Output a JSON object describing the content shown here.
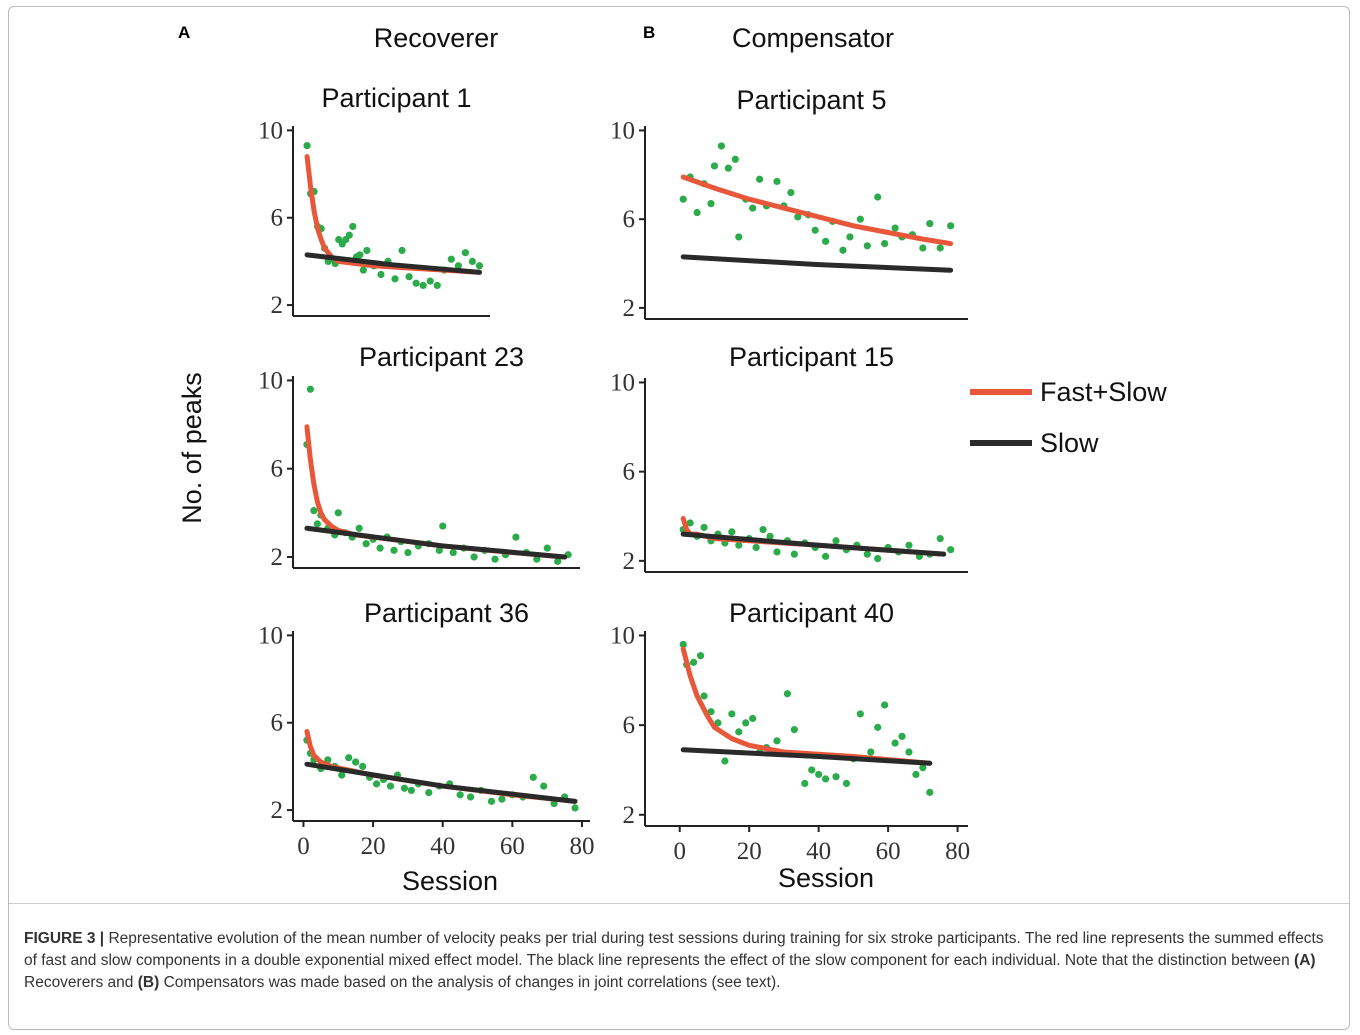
{
  "panel_labels": [
    "A",
    "B"
  ],
  "column_titles": [
    "Recoverer",
    "Compensator"
  ],
  "y_label": "No. of peaks",
  "x_label": "Session",
  "legend": [
    {
      "name": "Fast+Slow",
      "color": "#e8573a"
    },
    {
      "name": "Slow",
      "color": "#2a2a2a"
    }
  ],
  "caption": [
    "FIGURE 3 |",
    " Representative evolution of the mean number of velocity peaks per trial during test sessions during training for six stroke participants. The red line represents the summed effects of fast and slow components in a double exponential mixed effect model. The black line represents the effect of the slow component for each individual. Note that the distinction between ",
    "(A)",
    " Recoverers and ",
    "(B)",
    " Compensators was made based on the analysis of changes in joint correlations (see text)."
  ],
  "chart_data": [
    {
      "type": "scatter",
      "title": "Participant 1",
      "xlim": [
        -3,
        53
      ],
      "ylim": [
        1.5,
        10.2
      ],
      "yticks": [
        2,
        6,
        10
      ],
      "color": "#2bab4a",
      "x": [
        1,
        2,
        3,
        4,
        5,
        6,
        7,
        8,
        9,
        10,
        11,
        12,
        13,
        14,
        15,
        16,
        17,
        18,
        20,
        22,
        24,
        26,
        28,
        30,
        32,
        34,
        36,
        38,
        40,
        42,
        44,
        46,
        48,
        50
      ],
      "values": [
        9.3,
        7.1,
        7.2,
        5.6,
        5.5,
        4.6,
        4.0,
        4.1,
        3.9,
        5.0,
        4.8,
        5.0,
        5.2,
        5.6,
        4.2,
        4.3,
        3.6,
        4.5,
        3.8,
        3.4,
        4.0,
        3.2,
        4.5,
        3.3,
        3.0,
        2.9,
        3.1,
        2.9,
        3.6,
        4.1,
        3.8,
        4.4,
        4.0,
        3.8
      ],
      "fit": {
        "fast_slow": {
          "x": [
            1,
            2,
            3,
            4,
            5,
            6,
            8,
            10,
            15,
            20,
            30,
            40,
            50
          ],
          "values": [
            8.8,
            7.4,
            6.3,
            5.5,
            5.0,
            4.6,
            4.2,
            4.0,
            3.9,
            3.8,
            3.7,
            3.6,
            3.5
          ]
        },
        "slow": {
          "x": [
            1,
            25,
            50
          ],
          "values": [
            4.3,
            3.85,
            3.5
          ]
        }
      }
    },
    {
      "type": "scatter",
      "title": "Participant 5",
      "xlim": [
        -10,
        83
      ],
      "ylim": [
        1.5,
        10.2
      ],
      "yticks": [
        2,
        6,
        10
      ],
      "color": "#2bab4a",
      "x": [
        1,
        3,
        5,
        7,
        9,
        10,
        12,
        14,
        16,
        17,
        19,
        21,
        23,
        25,
        28,
        30,
        32,
        34,
        37,
        39,
        42,
        44,
        47,
        49,
        52,
        54,
        57,
        59,
        62,
        64,
        67,
        70,
        72,
        75,
        78
      ],
      "values": [
        6.9,
        7.9,
        6.3,
        7.6,
        6.7,
        8.4,
        9.3,
        8.3,
        8.7,
        5.2,
        6.9,
        6.5,
        7.8,
        6.6,
        7.7,
        6.6,
        7.2,
        6.1,
        6.2,
        5.5,
        5.0,
        5.9,
        4.6,
        5.2,
        6.0,
        4.8,
        7.0,
        4.9,
        5.6,
        5.2,
        5.3,
        4.7,
        5.8,
        4.7,
        5.7
      ],
      "fit": {
        "fast_slow": {
          "x": [
            1,
            10,
            20,
            30,
            40,
            50,
            60,
            70,
            78
          ],
          "values": [
            7.9,
            7.4,
            6.9,
            6.5,
            6.1,
            5.7,
            5.4,
            5.1,
            4.9
          ]
        },
        "slow": {
          "x": [
            1,
            40,
            78
          ],
          "values": [
            4.3,
            3.95,
            3.7
          ]
        }
      }
    },
    {
      "type": "scatter",
      "title": "Participant 23",
      "xlim": [
        -3,
        79.4
      ],
      "ylim": [
        1.5,
        10.2
      ],
      "yticks": [
        2,
        6,
        10
      ],
      "color": "#2bab4a",
      "x": [
        1,
        2,
        3,
        4,
        5,
        7,
        9,
        10,
        12,
        14,
        16,
        18,
        20,
        22,
        24,
        26,
        28,
        30,
        33,
        36,
        39,
        40,
        43,
        46,
        49,
        52,
        55,
        58,
        61,
        64,
        67,
        70,
        73,
        76
      ],
      "values": [
        7.1,
        9.6,
        4.1,
        3.5,
        3.9,
        3.3,
        3.0,
        4.0,
        3.1,
        2.9,
        3.3,
        2.6,
        2.8,
        2.4,
        2.9,
        2.3,
        2.7,
        2.2,
        2.5,
        2.6,
        2.3,
        3.4,
        2.2,
        2.4,
        2.0,
        2.3,
        1.9,
        2.1,
        2.9,
        2.2,
        1.9,
        2.4,
        1.8,
        2.1
      ],
      "fit": {
        "fast_slow": {
          "x": [
            1,
            2,
            3,
            4,
            5,
            6,
            8,
            10,
            15,
            20,
            40,
            60,
            75
          ],
          "values": [
            7.9,
            6.4,
            5.3,
            4.5,
            4.0,
            3.7,
            3.4,
            3.2,
            3.0,
            2.9,
            2.5,
            2.2,
            2.0
          ]
        },
        "slow": {
          "x": [
            1,
            40,
            75
          ],
          "values": [
            3.3,
            2.5,
            2.0
          ]
        }
      }
    },
    {
      "type": "scatter",
      "title": "Participant 15",
      "xlim": [
        -10,
        83
      ],
      "ylim": [
        1.5,
        10.2
      ],
      "yticks": [
        2,
        6,
        10
      ],
      "color": "#2bab4a",
      "x": [
        1,
        3,
        5,
        7,
        9,
        11,
        13,
        15,
        17,
        20,
        22,
        24,
        26,
        28,
        31,
        33,
        36,
        39,
        42,
        45,
        48,
        51,
        54,
        57,
        60,
        63,
        66,
        69,
        72,
        75,
        78
      ],
      "values": [
        3.4,
        3.7,
        3.1,
        3.5,
        2.9,
        3.2,
        2.8,
        3.3,
        2.7,
        3.0,
        2.6,
        3.4,
        3.1,
        2.4,
        2.9,
        2.3,
        2.8,
        2.6,
        2.2,
        2.9,
        2.5,
        2.7,
        2.3,
        2.1,
        2.6,
        2.4,
        2.7,
        2.2,
        2.3,
        3.0,
        2.5
      ],
      "fit": {
        "fast_slow": {
          "x": [
            1,
            2,
            3,
            5,
            10,
            40,
            76
          ],
          "values": [
            3.9,
            3.4,
            3.2,
            3.2,
            3.0,
            2.7,
            2.3
          ]
        },
        "slow": {
          "x": [
            1,
            40,
            76
          ],
          "values": [
            3.2,
            2.7,
            2.3
          ]
        }
      }
    },
    {
      "type": "scatter",
      "title": "Participant 36",
      "xlim": [
        -3,
        82.3
      ],
      "ylim": [
        1.5,
        10.2
      ],
      "yticks": [
        2,
        6,
        10
      ],
      "color": "#2bab4a",
      "xticks": [
        0,
        20,
        40,
        60,
        80
      ],
      "x": [
        1,
        2,
        3,
        5,
        7,
        9,
        11,
        13,
        15,
        17,
        19,
        21,
        23,
        25,
        27,
        29,
        31,
        33,
        36,
        39,
        42,
        45,
        48,
        51,
        54,
        57,
        60,
        63,
        66,
        69,
        72,
        75,
        78
      ],
      "values": [
        5.2,
        4.6,
        4.3,
        3.9,
        4.3,
        4.0,
        3.6,
        4.4,
        4.2,
        4.0,
        3.5,
        3.2,
        3.4,
        3.1,
        3.6,
        3.0,
        2.9,
        3.2,
        2.8,
        3.1,
        3.2,
        2.7,
        2.6,
        2.9,
        2.4,
        2.5,
        2.7,
        2.6,
        3.5,
        3.1,
        2.3,
        2.6,
        2.1
      ],
      "fit": {
        "fast_slow": {
          "x": [
            1,
            2,
            3,
            5,
            8,
            20,
            40,
            60,
            78
          ],
          "values": [
            5.6,
            4.9,
            4.5,
            4.2,
            4.0,
            3.6,
            3.1,
            2.7,
            2.4
          ]
        },
        "slow": {
          "x": [
            1,
            40,
            78
          ],
          "values": [
            4.1,
            3.1,
            2.4
          ]
        }
      }
    },
    {
      "type": "scatter",
      "title": "Participant 40",
      "xlim": [
        -10,
        83
      ],
      "ylim": [
        1.5,
        10.2
      ],
      "yticks": [
        2,
        6,
        10
      ],
      "color": "#2bab4a",
      "xticks": [
        0,
        20,
        40,
        60,
        80
      ],
      "x": [
        1,
        2,
        4,
        6,
        7,
        9,
        11,
        13,
        15,
        17,
        19,
        21,
        23,
        25,
        28,
        31,
        33,
        36,
        38,
        40,
        42,
        45,
        48,
        50,
        52,
        55,
        57,
        59,
        62,
        64,
        66,
        68,
        70,
        72
      ],
      "values": [
        9.6,
        8.7,
        8.8,
        9.1,
        7.3,
        6.6,
        6.1,
        4.4,
        6.5,
        5.7,
        6.1,
        6.3,
        4.8,
        5.0,
        5.3,
        7.4,
        5.8,
        3.4,
        4.0,
        3.8,
        3.6,
        3.7,
        3.4,
        4.5,
        6.5,
        4.8,
        5.9,
        6.9,
        5.2,
        5.5,
        4.8,
        3.8,
        4.1,
        3.0
      ],
      "fit": {
        "fast_slow": {
          "x": [
            1,
            3,
            5,
            8,
            10,
            15,
            20,
            30,
            40,
            50,
            72
          ],
          "values": [
            9.4,
            8.2,
            7.3,
            6.4,
            5.9,
            5.4,
            5.1,
            4.8,
            4.7,
            4.6,
            4.3
          ]
        },
        "slow": {
          "x": [
            1,
            40,
            72
          ],
          "values": [
            4.9,
            4.6,
            4.3
          ]
        }
      }
    }
  ]
}
